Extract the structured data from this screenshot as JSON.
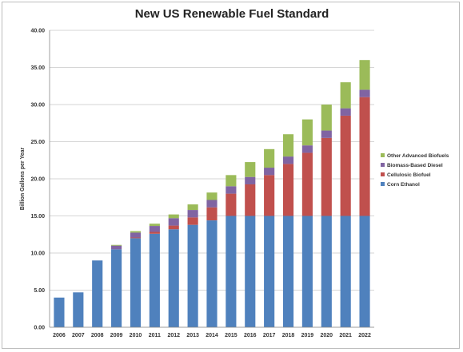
{
  "chart_data": {
    "type": "bar",
    "stacked": true,
    "title": "New US Renewable Fuel Standard",
    "xlabel": "",
    "ylabel": "Billion Gallons per Year",
    "ylim": [
      0,
      40
    ],
    "y_ticks": [
      "0.00",
      "5.00",
      "10.00",
      "15.00",
      "20.00",
      "25.00",
      "30.00",
      "35.00",
      "40.00"
    ],
    "grid": true,
    "legend_position": "right",
    "categories": [
      "2006",
      "2007",
      "2008",
      "2009",
      "2010",
      "2011",
      "2012",
      "2013",
      "2014",
      "2015",
      "2016",
      "2017",
      "2018",
      "2019",
      "2020",
      "2021",
      "2022"
    ],
    "series": [
      {
        "name": "Corn Ethanol",
        "color": "#4f81bd",
        "values": [
          4.0,
          4.7,
          9.0,
          10.5,
          12.0,
          12.6,
          13.2,
          13.8,
          14.4,
          15.0,
          15.0,
          15.0,
          15.0,
          15.0,
          15.0,
          15.0,
          15.0
        ]
      },
      {
        "name": "Cellulosic Biofuel",
        "color": "#c0504d",
        "values": [
          0,
          0,
          0,
          0,
          0.1,
          0.25,
          0.5,
          1.0,
          1.75,
          3.0,
          4.25,
          5.5,
          7.0,
          8.5,
          10.5,
          13.5,
          16.0
        ]
      },
      {
        "name": "Biomass-Based Diesel",
        "color": "#8064a2",
        "values": [
          0,
          0,
          0,
          0.5,
          0.65,
          0.8,
          1.0,
          1.0,
          1.0,
          1.0,
          1.0,
          1.0,
          1.0,
          1.0,
          1.0,
          1.0,
          1.0
        ]
      },
      {
        "name": "Other Advanced Biofuels",
        "color": "#9bbb59",
        "values": [
          0,
          0,
          0,
          0.1,
          0.2,
          0.3,
          0.5,
          0.75,
          1.0,
          1.5,
          2.0,
          2.5,
          3.0,
          3.5,
          3.5,
          3.5,
          4.0
        ]
      }
    ],
    "legend_order": [
      "Other Advanced Biofuels",
      "Biomass-Based Diesel",
      "Cellulosic Biofuel",
      "Corn Ethanol"
    ]
  }
}
